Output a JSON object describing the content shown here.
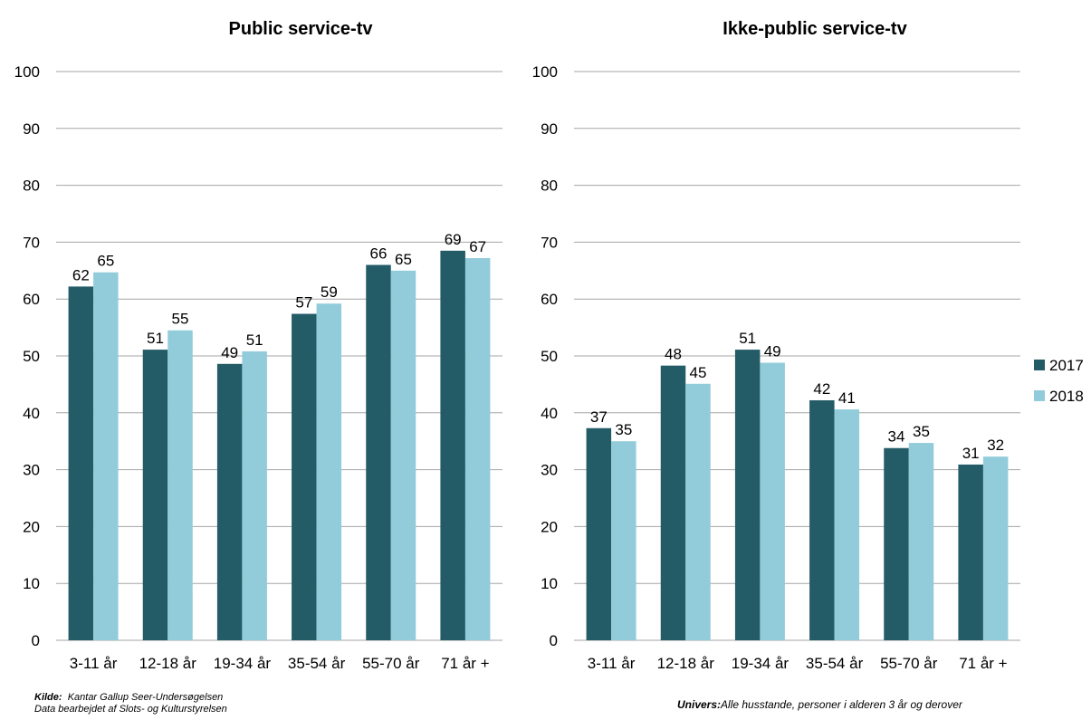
{
  "colors": {
    "2017": "#235b66",
    "2018": "#92ccda",
    "grid": "#a6a6a6"
  },
  "legend": {
    "placement": "right",
    "items": [
      "2017",
      "2018"
    ]
  },
  "footnotes": {
    "source_label": "Kilde:",
    "source_text": "Kantar Gallup Seer-Undersøgelsen",
    "processed_text": "Data bearbejdet af Slots- og Kulturstyrelsen",
    "univers_label": "Univers:",
    "univers_text": "Alle husstande, personer i alderen 3 år og derover"
  },
  "chart_data": [
    {
      "type": "bar",
      "title": "Public service-tv",
      "xlabel": "",
      "ylabel": "",
      "ylim": [
        0,
        100
      ],
      "yticks": [
        0,
        10,
        20,
        30,
        40,
        50,
        60,
        70,
        80,
        90,
        100
      ],
      "grid": true,
      "categories": [
        "3-11 år",
        "12-18 år",
        "19-34 år",
        "35-54 år",
        "55-70 år",
        "71 år +"
      ],
      "series": [
        {
          "name": "2017",
          "values": [
            62.2,
            51.1,
            48.6,
            57.4,
            66.0,
            68.5
          ],
          "labels": [
            "62",
            "51",
            "49",
            "57",
            "66",
            "69"
          ]
        },
        {
          "name": "2018",
          "values": [
            64.7,
            54.5,
            50.8,
            59.2,
            65.0,
            67.2
          ],
          "labels": [
            "65",
            "55",
            "51",
            "59",
            "65",
            "67"
          ]
        }
      ]
    },
    {
      "type": "bar",
      "title": "Ikke-public service-tv",
      "xlabel": "",
      "ylabel": "",
      "ylim": [
        0,
        100
      ],
      "yticks": [
        0,
        10,
        20,
        30,
        40,
        50,
        60,
        70,
        80,
        90,
        100
      ],
      "grid": true,
      "categories": [
        "3-11 år",
        "12-18 år",
        "19-34 år",
        "35-54 år",
        "55-70 år",
        "71 år +"
      ],
      "series": [
        {
          "name": "2017",
          "values": [
            37.3,
            48.3,
            51.1,
            42.2,
            33.8,
            30.9
          ],
          "labels": [
            "37",
            "48",
            "51",
            "42",
            "34",
            "31"
          ]
        },
        {
          "name": "2018",
          "values": [
            35.0,
            45.1,
            48.8,
            40.6,
            34.7,
            32.3
          ],
          "labels": [
            "35",
            "45",
            "49",
            "41",
            "35",
            "32"
          ]
        }
      ]
    }
  ]
}
